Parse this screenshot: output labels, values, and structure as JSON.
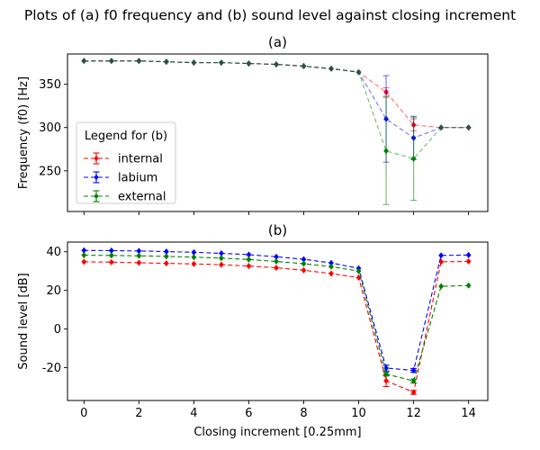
{
  "title": "Plots of (a) f0 frequency and (b) sound level against closing increment",
  "colors": {
    "internal": "#ff0000",
    "labium": "#0000ff",
    "external": "#008000",
    "line_a": "#2f4f4f"
  },
  "chart_data": [
    {
      "type": "line",
      "panel_title": "(a)",
      "xlabel": "",
      "ylabel": "Frequency (f0) [Hz]",
      "xlim": [
        -0.6,
        14.7
      ],
      "ylim": [
        203,
        385
      ],
      "yticks": [
        250,
        300,
        350
      ],
      "xticks": [
        0,
        2,
        4,
        6,
        8,
        10,
        12,
        14
      ],
      "show_xtick_labels": false,
      "grid": false,
      "x": [
        0,
        1,
        2,
        3,
        4,
        5,
        6,
        7,
        8,
        9,
        10,
        11,
        12,
        13,
        14
      ],
      "series": [
        {
          "name": "internal",
          "values": [
            377,
            377,
            377,
            376,
            375,
            375,
            374,
            373,
            371,
            368,
            364,
            341,
            303,
            300,
            300
          ],
          "errors": [
            0,
            0,
            0,
            0,
            0,
            0,
            0,
            0,
            0,
            0,
            0,
            5,
            7,
            0,
            0
          ]
        },
        {
          "name": "labium",
          "values": [
            377,
            377,
            377,
            376,
            375,
            375,
            374,
            373,
            371,
            368,
            364,
            310,
            288,
            300,
            300
          ],
          "errors": [
            0,
            0,
            0,
            0,
            0,
            0,
            0,
            0,
            0,
            0,
            0,
            50,
            25,
            0,
            0
          ]
        },
        {
          "name": "external",
          "values": [
            377,
            377,
            377,
            376,
            375,
            375,
            374,
            373,
            371,
            368,
            364,
            273,
            264,
            300,
            300
          ],
          "errors": [
            0,
            0,
            0,
            0,
            0,
            0,
            0,
            0,
            0,
            0,
            0,
            62,
            48,
            0,
            0
          ]
        }
      ]
    },
    {
      "type": "line",
      "panel_title": "(b)",
      "xlabel": "Closing increment [0.25mm]",
      "ylabel": "Sound level [dB]",
      "xlim": [
        -0.6,
        14.7
      ],
      "ylim": [
        -37,
        45
      ],
      "yticks": [
        -20,
        0,
        20,
        40
      ],
      "xticks": [
        0,
        2,
        4,
        6,
        8,
        10,
        12,
        14
      ],
      "show_xtick_labels": true,
      "grid": false,
      "legend": {
        "title": "Legend for (b)",
        "placement": "lower-left of (a)",
        "entries": [
          "internal",
          "labium",
          "external"
        ]
      },
      "x": [
        0,
        1,
        2,
        3,
        4,
        5,
        6,
        7,
        8,
        9,
        10,
        11,
        12,
        13,
        14
      ],
      "series": [
        {
          "name": "internal",
          "values": [
            34.8,
            34.6,
            34.3,
            34.0,
            33.7,
            33.3,
            32.6,
            31.7,
            30.4,
            28.7,
            26.6,
            -26.8,
            -32.8,
            34.8,
            35.0
          ],
          "errors": [
            0,
            0,
            0,
            0,
            0,
            0,
            0,
            0,
            0,
            0,
            0,
            3,
            1,
            0,
            0
          ]
        },
        {
          "name": "labium",
          "values": [
            40.7,
            40.6,
            40.4,
            40.1,
            39.7,
            39.2,
            38.5,
            37.4,
            36.1,
            34.2,
            31.4,
            -20.2,
            -21.4,
            38.1,
            38.3
          ],
          "errors": [
            0,
            0,
            0,
            0,
            0,
            0,
            0,
            0,
            0,
            0,
            0,
            1.5,
            1,
            0,
            0
          ]
        },
        {
          "name": "external",
          "values": [
            38.2,
            38.1,
            37.9,
            37.6,
            37.2,
            36.7,
            36.0,
            35.0,
            33.8,
            32.3,
            30.0,
            -23.3,
            -26.9,
            22.1,
            22.5
          ],
          "errors": [
            0,
            0,
            0,
            0,
            0,
            0,
            0,
            0,
            0,
            0,
            0,
            1,
            1,
            0,
            0
          ]
        }
      ]
    }
  ]
}
